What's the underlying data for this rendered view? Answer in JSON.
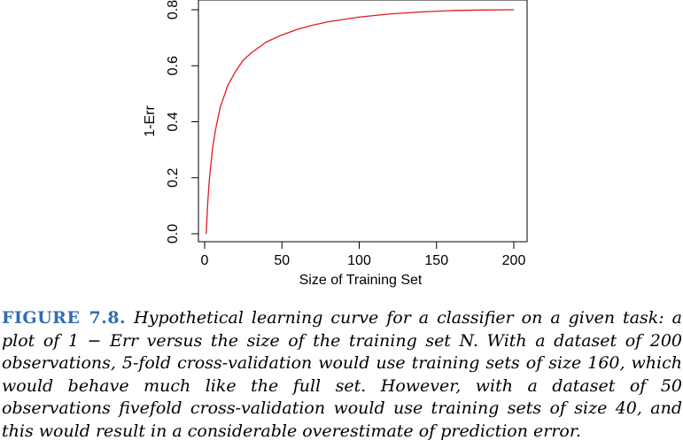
{
  "chart_data": {
    "type": "line",
    "xlabel": "Size of Training Set",
    "ylabel": "1-Err",
    "xlim": [
      0,
      205
    ],
    "ylim": [
      0,
      0.82
    ],
    "xticks": [
      0,
      50,
      100,
      150,
      200
    ],
    "yticks": [
      0.0,
      0.2,
      0.4,
      0.6,
      0.8
    ],
    "xtick_labels": [
      "0",
      "50",
      "100",
      "150",
      "200"
    ],
    "ytick_labels": [
      "0.0",
      "0.2",
      "0.4",
      "0.6",
      "0.8"
    ],
    "series": [
      {
        "color": "#e31a1c",
        "x": [
          1,
          2,
          3,
          5,
          7,
          10,
          15,
          20,
          25,
          30,
          40,
          50,
          60,
          70,
          80,
          100,
          120,
          140,
          160,
          180,
          200
        ],
        "y": [
          0.0,
          0.11,
          0.19,
          0.3,
          0.37,
          0.45,
          0.53,
          0.58,
          0.62,
          0.645,
          0.685,
          0.71,
          0.73,
          0.745,
          0.757,
          0.774,
          0.785,
          0.792,
          0.797,
          0.799,
          0.8
        ]
      }
    ],
    "grid": false,
    "legend": "none"
  },
  "caption": {
    "label": "FIGURE 7.8.",
    "text": "Hypothetical learning curve for a classifier on a given task: a plot of 1 − Err versus the size of the training set N. With a dataset of 200 observations, 5-fold cross-validation would use training sets of size 160, which would behave much like the full set. However, with a dataset of 50 observations fivefold cross-validation would use training sets of size 40, and this would result in a considerable overestimate of prediction error."
  },
  "colors": {
    "curve": "#e31a1c",
    "figure_label": "#2f6db5"
  }
}
